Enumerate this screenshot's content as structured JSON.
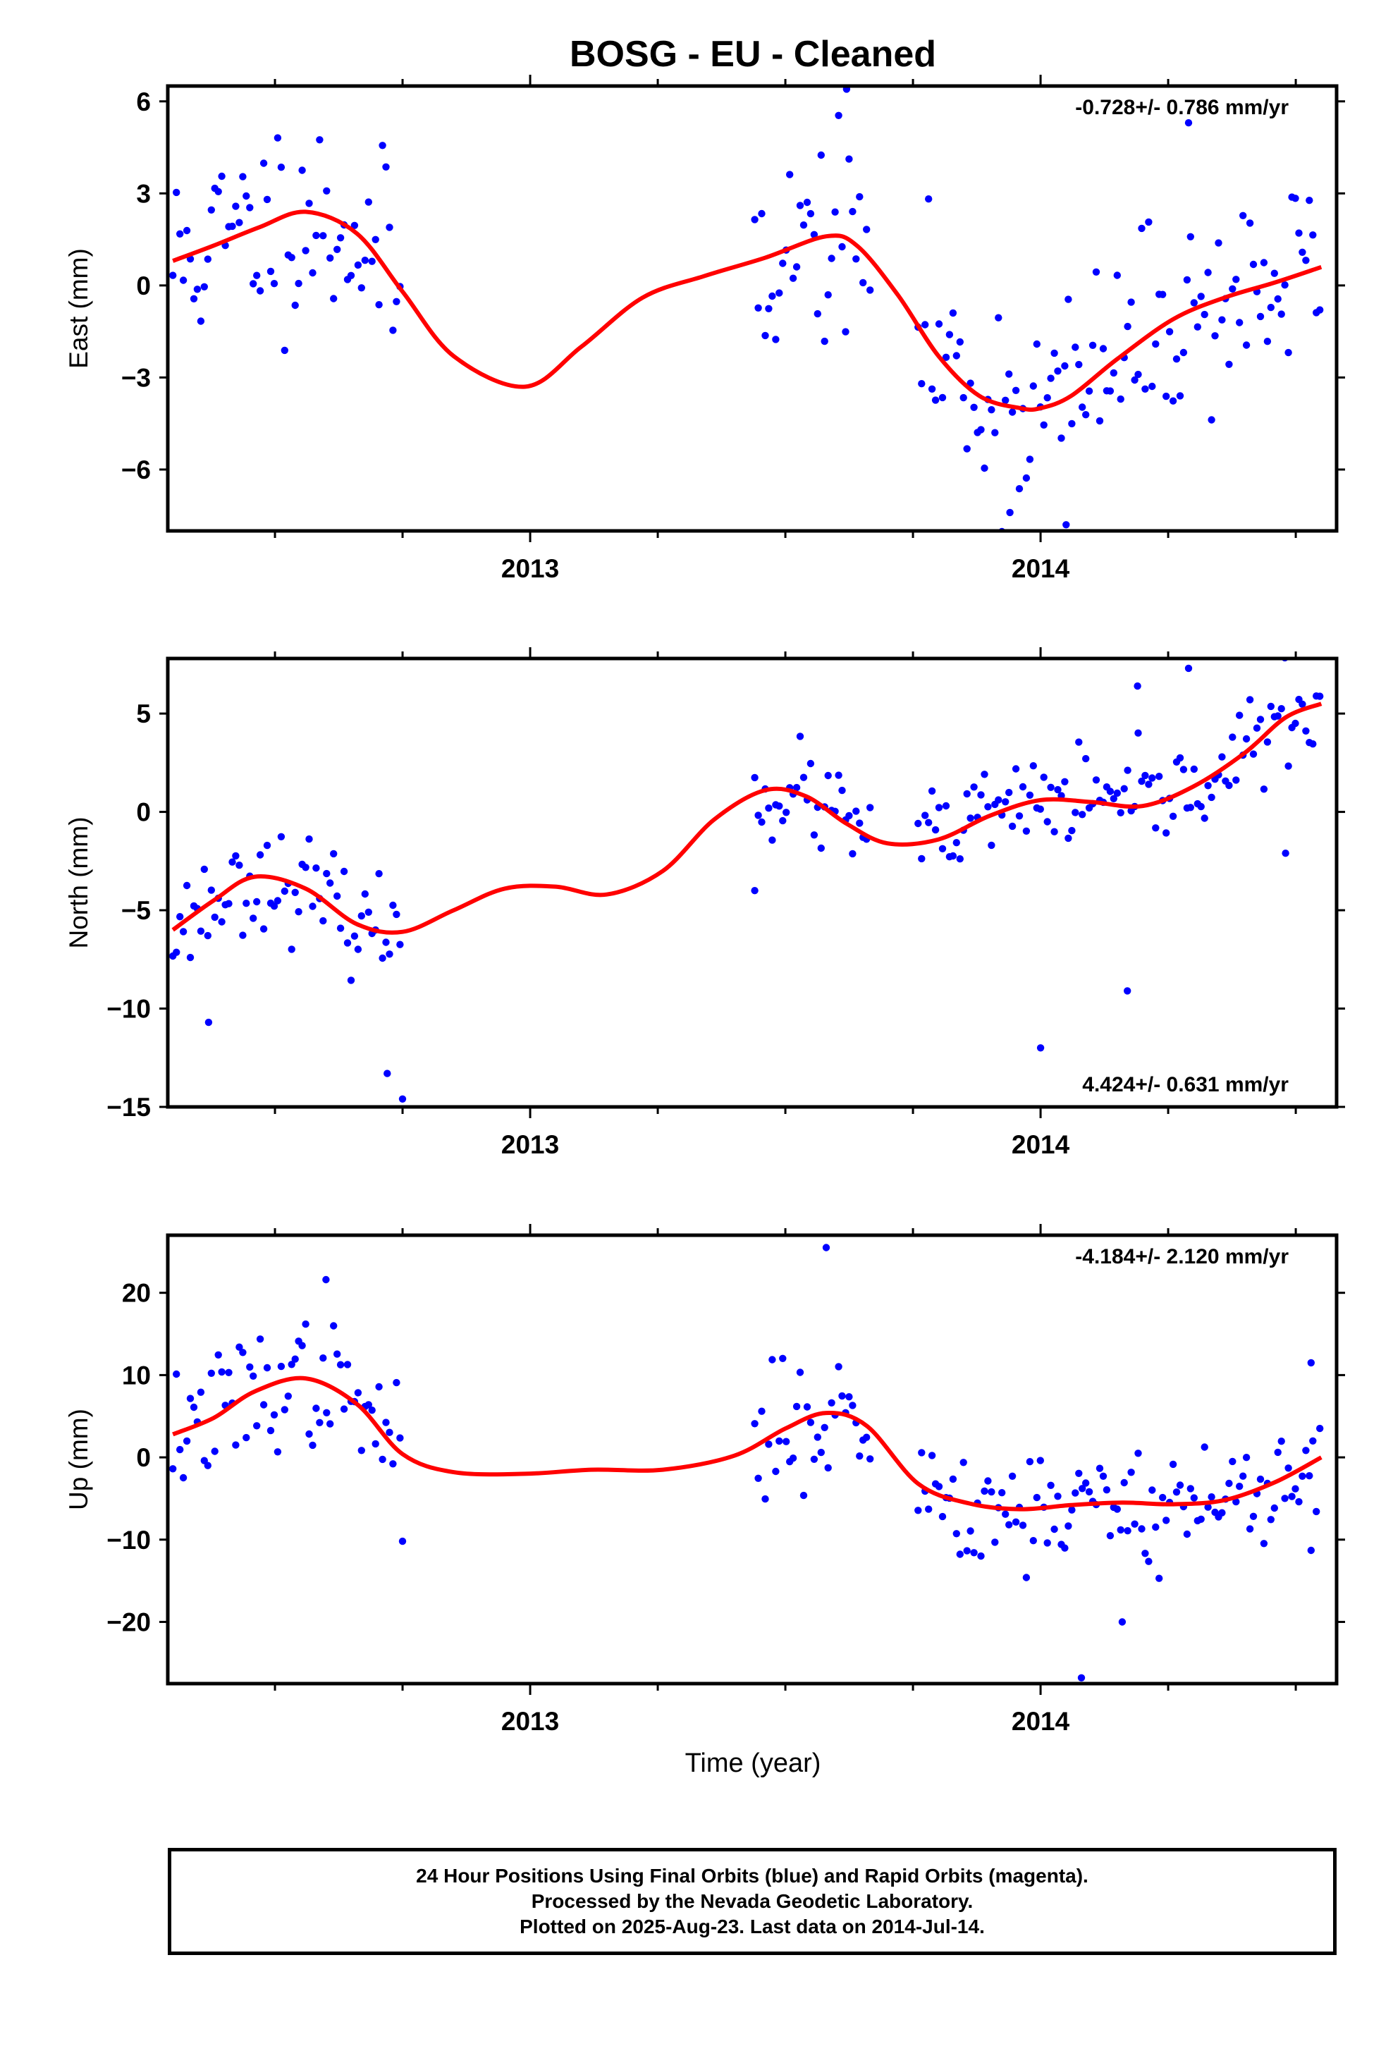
{
  "figure": {
    "title": "BOSG  - EU - Cleaned",
    "xlabel": "Time (year)"
  },
  "colors": {
    "final_orbits": "#0000ff",
    "trend": "#ff0000",
    "axes": "#000000"
  },
  "footer": {
    "line1": "24 Hour Positions Using Final Orbits (blue) and Rapid Orbits (magenta).",
    "line2": "Processed by the Nevada Geodetic Laboratory.",
    "line3": "Plotted on 2025-Aug-23. Last data on 2014-Jul-14."
  },
  "chart_data": [
    {
      "type": "scatter",
      "ylabel": "East (mm)",
      "rate_label": "-0.728+/- 0.786 mm/yr",
      "rate_position": "top-right",
      "xlim": [
        2012.29,
        2014.58
      ],
      "ylim": [
        -8,
        6.5
      ],
      "xticks": [
        2013,
        2014
      ],
      "yticks": [
        6,
        3,
        0,
        -3,
        -6
      ],
      "segments": [
        [
          2012.3,
          2012.75
        ],
        [
          2013.44,
          2013.67
        ],
        [
          2013.76,
          2014.55
        ]
      ],
      "seed": 11,
      "noise": 1.7,
      "outliers": [
        [
          2013.62,
          6.4
        ],
        [
          2014.29,
          5.3
        ],
        [
          2013.94,
          -7.4
        ],
        [
          2014.05,
          -7.8
        ]
      ],
      "trend": {
        "x": [
          2012.3,
          2012.38,
          2012.47,
          2012.56,
          2012.66,
          2012.75,
          2012.85,
          2012.99,
          2013.1,
          2013.22,
          2013.34,
          2013.46,
          2013.58,
          2013.64,
          2013.72,
          2013.8,
          2013.88,
          2013.96,
          2014.0,
          2014.06,
          2014.15,
          2014.26,
          2014.36,
          2014.46,
          2014.55
        ],
        "y": [
          0.8,
          1.3,
          1.9,
          2.4,
          1.7,
          -0.2,
          -2.3,
          -3.3,
          -2.0,
          -0.4,
          0.3,
          0.9,
          1.6,
          1.3,
          -0.3,
          -2.3,
          -3.6,
          -4.0,
          -4.0,
          -3.6,
          -2.4,
          -1.1,
          -0.4,
          0.1,
          0.6
        ]
      }
    },
    {
      "type": "scatter",
      "ylabel": "North (mm)",
      "rate_label": "4.424+/- 0.631 mm/yr",
      "rate_position": "bottom-right",
      "xlim": [
        2012.29,
        2014.58
      ],
      "ylim": [
        -15,
        7.8
      ],
      "xticks": [
        2013,
        2014
      ],
      "yticks": [
        5,
        0,
        -5,
        -10,
        -15
      ],
      "segments": [
        [
          2012.3,
          2012.75
        ],
        [
          2013.44,
          2013.67
        ],
        [
          2013.76,
          2014.55
        ]
      ],
      "seed": 23,
      "noise": 1.2,
      "outliers": [
        [
          2012.37,
          -10.7
        ],
        [
          2012.72,
          -13.3
        ],
        [
          2012.75,
          -14.6
        ],
        [
          2013.44,
          -4.0
        ],
        [
          2014.0,
          -12.0
        ],
        [
          2014.17,
          -9.1
        ],
        [
          2014.48,
          -2.1
        ],
        [
          2014.19,
          6.4
        ],
        [
          2014.29,
          7.3
        ]
      ],
      "trend": {
        "x": [
          2012.3,
          2012.38,
          2012.46,
          2012.56,
          2012.66,
          2012.75,
          2012.85,
          2012.95,
          2013.05,
          2013.15,
          2013.26,
          2013.36,
          2013.46,
          2013.54,
          2013.62,
          2013.7,
          2013.8,
          2013.9,
          2014.0,
          2014.1,
          2014.2,
          2014.3,
          2014.4,
          2014.48,
          2014.55
        ],
        "y": [
          -6.0,
          -4.5,
          -3.3,
          -3.9,
          -5.7,
          -6.1,
          -5.0,
          -3.9,
          -3.8,
          -4.2,
          -3.0,
          -0.4,
          1.1,
          0.8,
          -0.6,
          -1.6,
          -1.4,
          -0.2,
          0.6,
          0.5,
          0.3,
          1.3,
          3.0,
          4.8,
          5.5
        ]
      }
    },
    {
      "type": "scatter",
      "ylabel": "Up (mm)",
      "rate_label": "-4.184+/- 2.120 mm/yr",
      "rate_position": "top-right",
      "xlim": [
        2012.29,
        2014.58
      ],
      "ylim": [
        -27.5,
        27
      ],
      "xticks": [
        2013,
        2014
      ],
      "yticks": [
        20,
        10,
        0,
        -10,
        -20
      ],
      "segments": [
        [
          2012.3,
          2012.75
        ],
        [
          2013.44,
          2013.67
        ],
        [
          2013.76,
          2014.55
        ]
      ],
      "seed": 37,
      "noise": 3.8,
      "outliers": [
        [
          2013.58,
          25.5
        ],
        [
          2012.6,
          21.6
        ],
        [
          2014.08,
          -26.8
        ],
        [
          2014.16,
          -20.0
        ],
        [
          2014.53,
          11.5
        ],
        [
          2012.75,
          -10.2
        ],
        [
          2014.53,
          -11.3
        ]
      ],
      "trend": {
        "x": [
          2012.3,
          2012.38,
          2012.46,
          2012.56,
          2012.66,
          2012.75,
          2012.85,
          2012.99,
          2013.12,
          2013.26,
          2013.4,
          2013.5,
          2013.58,
          2013.66,
          2013.76,
          2013.86,
          2013.96,
          2014.06,
          2014.16,
          2014.26,
          2014.36,
          2014.46,
          2014.55
        ],
        "y": [
          2.8,
          4.8,
          8.0,
          9.6,
          6.5,
          0.4,
          -1.8,
          -2.0,
          -1.5,
          -1.5,
          0.2,
          3.5,
          5.4,
          3.8,
          -3.2,
          -5.6,
          -6.3,
          -5.8,
          -5.5,
          -5.7,
          -5.2,
          -3.0,
          0.0
        ]
      }
    }
  ]
}
